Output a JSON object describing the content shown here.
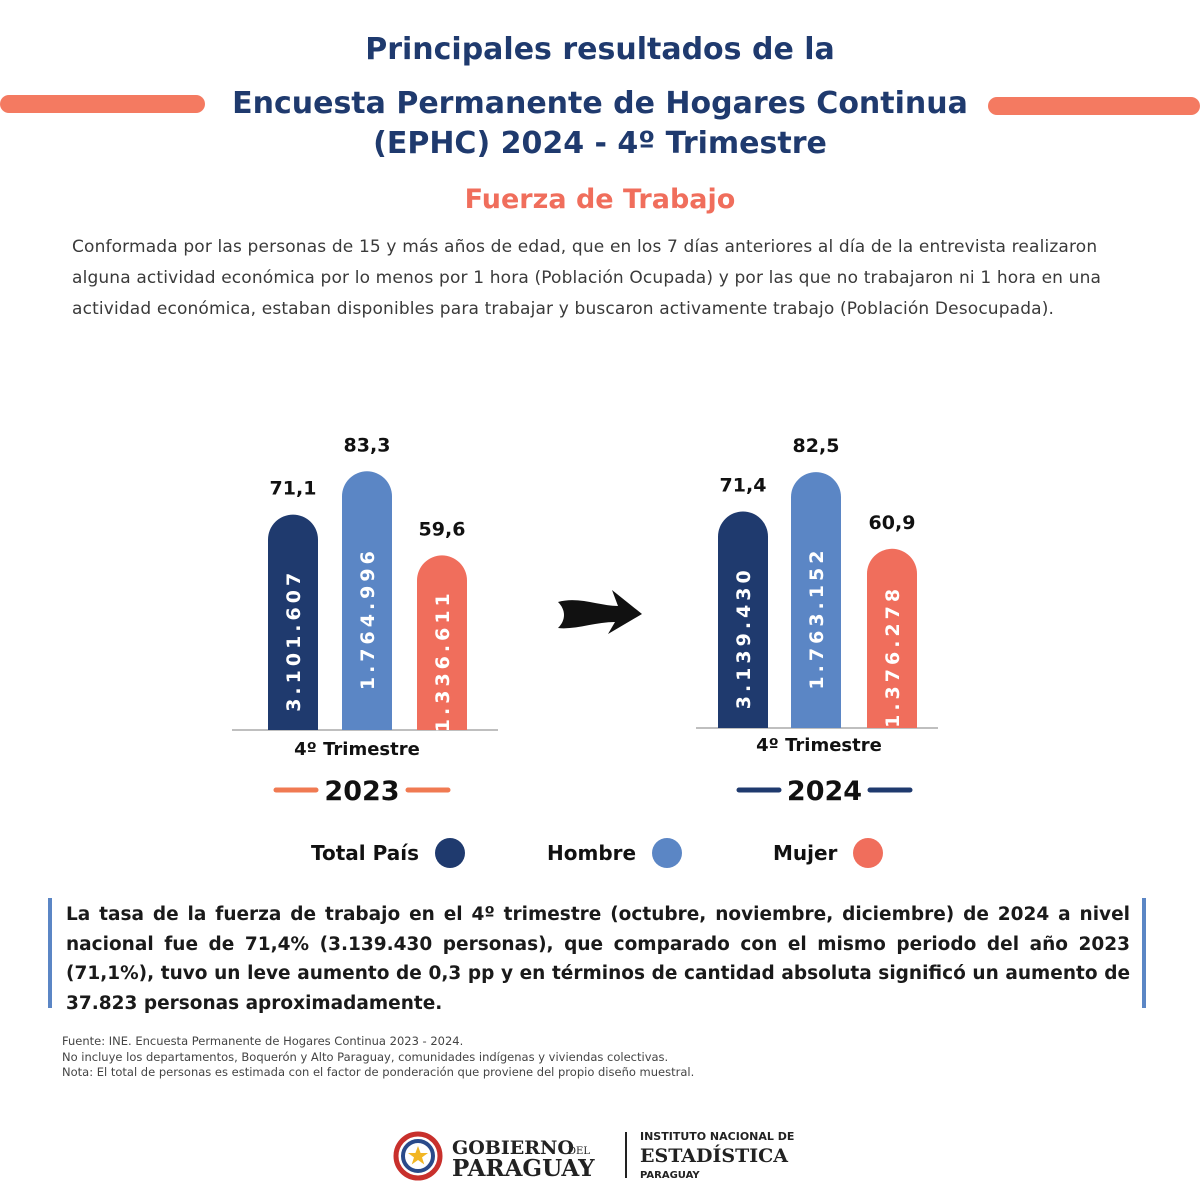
{
  "header": {
    "line1": "Principales resultados de la",
    "line2": "Encuesta Permanente de Hogares Continua",
    "line3": "(EPHC) 2024 - 4º Trimestre"
  },
  "subtitle": "Fuerza de Trabajo",
  "intro": "Conformada por las personas de 15 y más años de edad, que en los 7 días anteriores al día de la entrevista realizaron alguna actividad económica por lo menos por 1 hora (Población Ocupada) y por las que no trabajaron ni 1 hora en una actividad económica, estaban disponibles para trabajar y buscaron activamente trabajo (Población Desocupada).",
  "colors": {
    "navy": "#1f3a6e",
    "blue": "#5b86c5",
    "coral": "#f06e5c",
    "orange": "#f07a52",
    "arrow": "#111111"
  },
  "chart_data": [
    {
      "type": "bar",
      "category_label": "4º Trimestre",
      "period": "2023",
      "period_color": "#f07a52",
      "series": [
        {
          "name": "Total País",
          "rate": 71.1,
          "rate_label": "71,1",
          "persons": "3.101.607",
          "color": "#1f3a6e"
        },
        {
          "name": "Hombre",
          "rate": 83.3,
          "rate_label": "83,3",
          "persons": "1.764.996",
          "color": "#5b86c5"
        },
        {
          "name": "Mujer",
          "rate": 59.6,
          "rate_label": "59,6",
          "persons": "1.336.611",
          "color": "#f06e5c"
        }
      ]
    },
    {
      "type": "bar",
      "category_label": "4º Trimestre",
      "period": "2024",
      "period_color": "#1f3a6e",
      "series": [
        {
          "name": "Total País",
          "rate": 71.4,
          "rate_label": "71,4",
          "persons": "3.139.430",
          "color": "#1f3a6e"
        },
        {
          "name": "Hombre",
          "rate": 82.5,
          "rate_label": "82,5",
          "persons": "1.763.152",
          "color": "#5b86c5"
        },
        {
          "name": "Mujer",
          "rate": 60.9,
          "rate_label": "60,9",
          "persons": "1.376.278",
          "color": "#f06e5c"
        }
      ]
    }
  ],
  "legend": [
    {
      "label": "Total País",
      "color": "#1f3a6e"
    },
    {
      "label": "Hombre",
      "color": "#5b86c5"
    },
    {
      "label": "Mujer",
      "color": "#f06e5c"
    }
  ],
  "summary": "La tasa de la fuerza de trabajo en el 4º trimestre (octubre, noviembre, diciembre) de 2024 a nivel nacional fue de 71,4% (3.139.430 personas), que comparado con el mismo periodo del año 2023 (71,1%), tuvo un leve aumento de 0,3 pp y en términos de cantidad absoluta significó un aumento de 37.823 personas aproximadamente.",
  "notes": [
    "Fuente: INE. Encuesta Permanente de Hogares Continua 2023 - 2024.",
    "No incluye los departamentos, Boquerón y Alto Paraguay, comunidades indígenas y viviendas colectivas.",
    "Nota: El total de personas es estimada con el factor de ponderación que proviene del propio diseño muestral."
  ],
  "footer": {
    "gov_line1": "GOBIERNO",
    "gov_del": "DEL",
    "gov_line2": "PARAGUAY",
    "ine_line1": "INSTITUTO NACIONAL DE",
    "ine_line2": "ESTADÍSTICA",
    "ine_line3": "PARAGUAY"
  }
}
